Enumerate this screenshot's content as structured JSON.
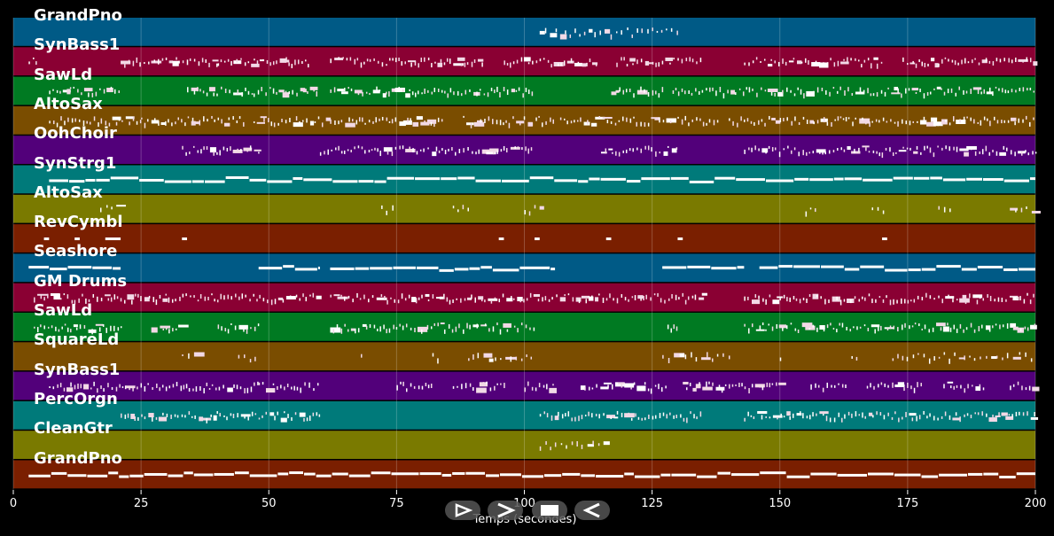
{
  "time_axis": {
    "label": "Temps (secondes)",
    "min": 0,
    "max": 200,
    "ticks": [
      "0",
      "25",
      "50",
      "75",
      "100",
      "125",
      "150",
      "175",
      "200"
    ]
  },
  "tracks": [
    {
      "name": "GrandPno",
      "color": "#005a86",
      "segments": [
        [
          103,
          130
        ]
      ],
      "style": "sparse"
    },
    {
      "name": "SynBass1",
      "color": "#8a0033",
      "segments": [
        [
          3,
          5
        ],
        [
          21,
          40
        ],
        [
          40,
          58
        ],
        [
          62,
          92
        ],
        [
          96,
          114
        ],
        [
          118,
          135
        ],
        [
          143,
          170
        ],
        [
          174,
          200
        ]
      ],
      "style": "dense"
    },
    {
      "name": "SawLd",
      "color": "#007a22",
      "segments": [
        [
          7,
          21
        ],
        [
          34,
          47
        ],
        [
          47,
          60
        ],
        [
          62,
          102
        ],
        [
          117,
          127
        ],
        [
          129,
          200
        ]
      ],
      "style": "dense"
    },
    {
      "name": "AltoSax",
      "color": "#7a4d00",
      "segments": [
        [
          7,
          25
        ],
        [
          25,
          35
        ],
        [
          35,
          45
        ],
        [
          47,
          84
        ],
        [
          88,
          106
        ],
        [
          107,
          138
        ],
        [
          140,
          200
        ]
      ],
      "style": "dense"
    },
    {
      "name": "OohChoir",
      "color": "#52007a",
      "segments": [
        [
          33,
          48
        ],
        [
          60,
          102
        ],
        [
          115,
          130
        ],
        [
          143,
          200
        ]
      ],
      "style": "dense"
    },
    {
      "name": "SynStrg1",
      "color": "#007a7a",
      "segments": [
        [
          7,
          200
        ]
      ],
      "style": "solid"
    },
    {
      "name": "AltoSax",
      "color": "#7a7a00",
      "segments": [
        [
          17,
          21
        ],
        [
          72,
          75
        ],
        [
          86,
          89
        ],
        [
          100,
          103
        ],
        [
          155,
          158
        ],
        [
          168,
          171
        ],
        [
          181,
          184
        ],
        [
          195,
          200
        ]
      ],
      "style": "sparse"
    },
    {
      "name": "RevCymbl",
      "color": "#7a1f00",
      "segments": [
        [
          6,
          7
        ],
        [
          12,
          13
        ],
        [
          18,
          21
        ],
        [
          33,
          34
        ],
        [
          95,
          96
        ],
        [
          102,
          103
        ],
        [
          116,
          117
        ],
        [
          130,
          131
        ],
        [
          170,
          171
        ]
      ],
      "style": "dots"
    },
    {
      "name": "Seashore",
      "color": "#005a86",
      "segments": [
        [
          3,
          21
        ],
        [
          48,
          60
        ],
        [
          62,
          106
        ],
        [
          127,
          143
        ],
        [
          146,
          200
        ]
      ],
      "style": "solid"
    },
    {
      "name": "GM Drums",
      "color": "#8a0033",
      "segments": [
        [
          4,
          60
        ],
        [
          62,
          135
        ],
        [
          143,
          200
        ]
      ],
      "style": "dense"
    },
    {
      "name": "SawLd",
      "color": "#007a22",
      "segments": [
        [
          4,
          21
        ],
        [
          27,
          33
        ],
        [
          40,
          48
        ],
        [
          62,
          102
        ],
        [
          128,
          130
        ],
        [
          143,
          200
        ]
      ],
      "style": "dense"
    },
    {
      "name": "SquareLd",
      "color": "#7a4d00",
      "segments": [
        [
          33,
          36
        ],
        [
          44,
          48
        ],
        [
          68,
          69
        ],
        [
          82,
          83
        ],
        [
          89,
          102
        ],
        [
          127,
          140
        ],
        [
          150,
          151
        ],
        [
          164,
          165
        ],
        [
          172,
          200
        ]
      ],
      "style": "sparse"
    },
    {
      "name": "SynBass1",
      "color": "#52007a",
      "segments": [
        [
          7,
          22
        ],
        [
          22,
          48
        ],
        [
          48,
          60
        ],
        [
          75,
          82
        ],
        [
          86,
          96
        ],
        [
          100,
          106
        ],
        [
          111,
          128
        ],
        [
          131,
          150
        ],
        [
          156,
          163
        ],
        [
          167,
          178
        ],
        [
          182,
          190
        ],
        [
          195,
          200
        ]
      ],
      "style": "dense"
    },
    {
      "name": "PercOrgn",
      "color": "#007a7a",
      "segments": [
        [
          21,
          48
        ],
        [
          48,
          60
        ],
        [
          103,
          135
        ],
        [
          143,
          200
        ]
      ],
      "style": "dense"
    },
    {
      "name": "CleanGtr",
      "color": "#7a7a00",
      "segments": [
        [
          103,
          116
        ]
      ],
      "style": "sparse"
    },
    {
      "name": "GrandPno",
      "color": "#7a1f00",
      "segments": [
        [
          3,
          200
        ]
      ],
      "style": "solid"
    }
  ],
  "controls": [
    {
      "name": "play-button",
      "glyph": "play"
    },
    {
      "name": "forward-button",
      "glyph": "chevron-right"
    },
    {
      "name": "stop-button",
      "glyph": "square"
    },
    {
      "name": "rewind-button",
      "glyph": "chevron-left"
    }
  ]
}
